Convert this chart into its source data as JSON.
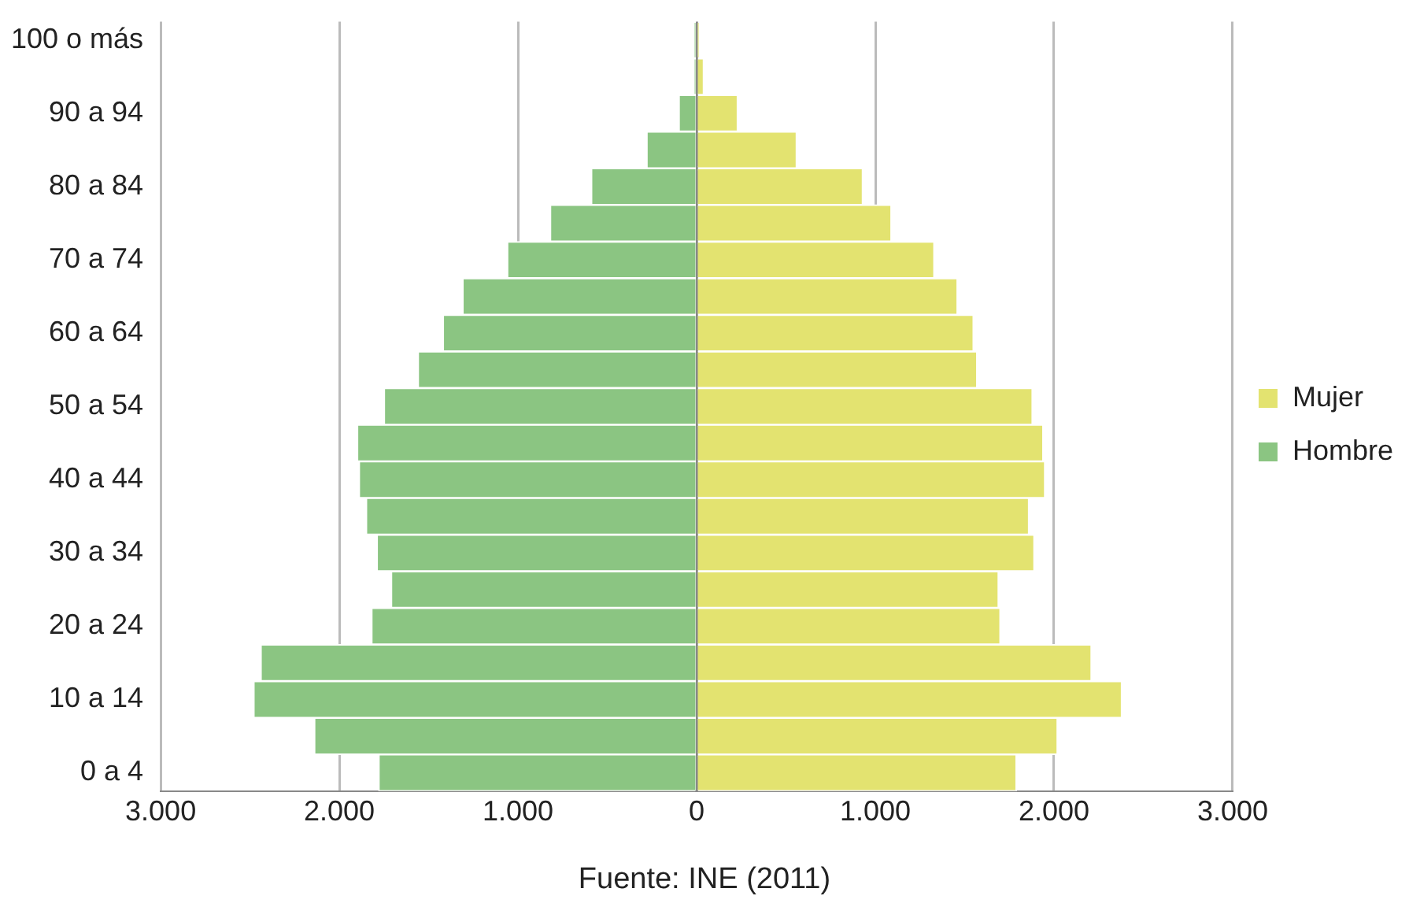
{
  "chart_data": {
    "type": "bar",
    "orientation": "horizontal",
    "stacked": true,
    "categories": [
      "100 o más",
      null,
      "90 a 94",
      null,
      "80 a 84",
      null,
      "70 a 74",
      null,
      "60 a 64",
      null,
      "50 a 54",
      null,
      "40 a 44",
      null,
      "30 a 34",
      null,
      "20 a 24",
      null,
      "10 a 14",
      null,
      "0 a 4"
    ],
    "series": [
      {
        "name": "Hombre",
        "color": "#8bc582",
        "values": [
          -10,
          -10,
          -100,
          -280,
          -590,
          -820,
          -1060,
          -1310,
          -1420,
          -1560,
          -1750,
          -1900,
          -1890,
          -1850,
          -1790,
          -1710,
          -1820,
          -2440,
          -2480,
          -2140,
          -1780
        ]
      },
      {
        "name": "Mujer",
        "color": "#e3e370",
        "values": [
          10,
          40,
          230,
          560,
          930,
          1090,
          1330,
          1460,
          1550,
          1570,
          1880,
          1940,
          1950,
          1860,
          1890,
          1690,
          1700,
          2210,
          2380,
          2020,
          1790
        ]
      }
    ],
    "xlim": [
      -3000,
      3000
    ],
    "xticks": [
      {
        "value": -3000,
        "label": "3.000"
      },
      {
        "value": -2000,
        "label": "2.000"
      },
      {
        "value": -1000,
        "label": "1.000"
      },
      0,
      {
        "value": 1000,
        "label": "1.000"
      },
      {
        "value": 2000,
        "label": "2.000"
      },
      {
        "value": 3000,
        "label": "3.000"
      }
    ],
    "grid": "x",
    "legend": "right",
    "annotations": [
      "Fuente: INE (2011)"
    ]
  }
}
